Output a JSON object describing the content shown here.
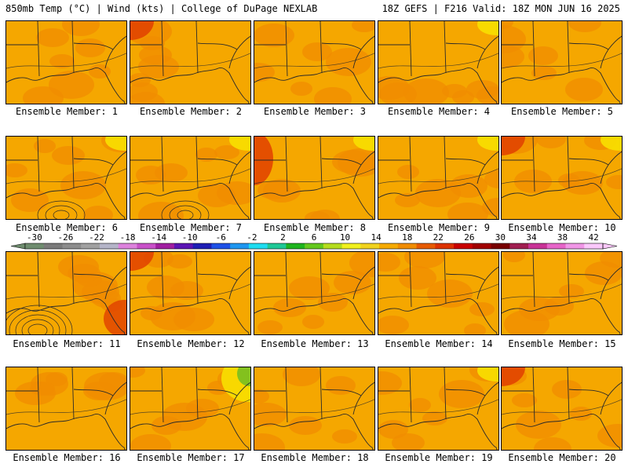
{
  "header": {
    "left": "850mb Temp (°C) | Wind (kts) | College of DuPage NEXLAB",
    "right": "18Z GEFS | F216 Valid: 18Z MON JUN 16 2025"
  },
  "panels": [
    {
      "label": "Ensemble Member: 1",
      "hot_corner": "none",
      "accent": "none"
    },
    {
      "label": "Ensemble Member: 2",
      "hot_corner": "top-left",
      "accent": "none"
    },
    {
      "label": "Ensemble Member: 3",
      "hot_corner": "none",
      "accent": "none"
    },
    {
      "label": "Ensemble Member: 4",
      "hot_corner": "none",
      "accent": "yellow-top-right"
    },
    {
      "label": "Ensemble Member: 5",
      "hot_corner": "none",
      "accent": "none"
    },
    {
      "label": "Ensemble Member: 6",
      "hot_corner": "none",
      "accent": "yellow-top-right"
    },
    {
      "label": "Ensemble Member: 7",
      "hot_corner": "none",
      "accent": "yellow-top-right"
    },
    {
      "label": "Ensemble Member: 8",
      "hot_corner": "left",
      "accent": "yellow-top-right"
    },
    {
      "label": "Ensemble Member: 9",
      "hot_corner": "none",
      "accent": "yellow-top-right"
    },
    {
      "label": "Ensemble Member: 10",
      "hot_corner": "top-left",
      "accent": "yellow-top-right"
    },
    {
      "label": "Ensemble Member: 11",
      "hot_corner": "bottom-right",
      "accent": "none"
    },
    {
      "label": "Ensemble Member: 12",
      "hot_corner": "top-left",
      "accent": "none"
    },
    {
      "label": "Ensemble Member: 13",
      "hot_corner": "none",
      "accent": "none"
    },
    {
      "label": "Ensemble Member: 14",
      "hot_corner": "none",
      "accent": "none"
    },
    {
      "label": "Ensemble Member: 15",
      "hot_corner": "none",
      "accent": "none"
    },
    {
      "label": "Ensemble Member: 16",
      "hot_corner": "none",
      "accent": "none"
    },
    {
      "label": "Ensemble Member: 17",
      "hot_corner": "none",
      "accent": "green-top-right"
    },
    {
      "label": "Ensemble Member: 18",
      "hot_corner": "none",
      "accent": "none"
    },
    {
      "label": "Ensemble Member: 19",
      "hot_corner": "none",
      "accent": "yellow-top-right"
    },
    {
      "label": "Ensemble Member: 20",
      "hot_corner": "top-left",
      "accent": "none"
    }
  ],
  "colorbar": {
    "ticks": [
      "-30",
      "-26",
      "-22",
      "-18",
      "-14",
      "-10",
      "-6",
      "-2",
      "2",
      "6",
      "10",
      "14",
      "18",
      "22",
      "26",
      "30",
      "34",
      "38",
      "42"
    ],
    "colors": [
      "#6e8c6e",
      "#7a7a7a",
      "#8c8c8c",
      "#a0a0a0",
      "#b4b4c8",
      "#dc82dc",
      "#c850c8",
      "#a01ea0",
      "#5a14b4",
      "#1e1eb4",
      "#1e50e6",
      "#1e96f0",
      "#1edcf0",
      "#1ec896",
      "#1eb41e",
      "#64c81e",
      "#b4dc1e",
      "#f0f01e",
      "#f0d21e",
      "#f5aa00",
      "#f08c00",
      "#e65a00",
      "#dc3200",
      "#c80000",
      "#a00000",
      "#780000",
      "#a01e50",
      "#c83296",
      "#e664c8",
      "#f096e6",
      "#fac8fa"
    ],
    "palette": {
      "base": "#f5a700",
      "warm": "#f08c00",
      "hot": "#e04000",
      "yellow": "#f8e000",
      "green": "#7cc020",
      "contour": "#2a2a2a"
    }
  }
}
